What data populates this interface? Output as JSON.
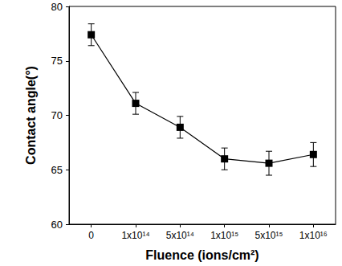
{
  "chart_data": {
    "type": "line",
    "x_label": "Fluence (ions/cm²)",
    "y_label": "Contact angle(°)",
    "categories": [
      "0",
      "1x10¹⁴",
      "5x10¹⁴",
      "1x10¹⁵",
      "5x10¹⁵",
      "1x10¹⁶"
    ],
    "values": [
      77.4,
      71.1,
      68.9,
      66.0,
      65.6,
      66.4
    ],
    "errors": [
      1.0,
      1.0,
      1.0,
      1.0,
      1.1,
      1.1
    ],
    "color": "#000000",
    "marker": "square",
    "line_style": "solid",
    "ylim": [
      60,
      80
    ],
    "yticks": [
      60,
      65,
      70,
      75,
      80
    ],
    "grid": false
  }
}
